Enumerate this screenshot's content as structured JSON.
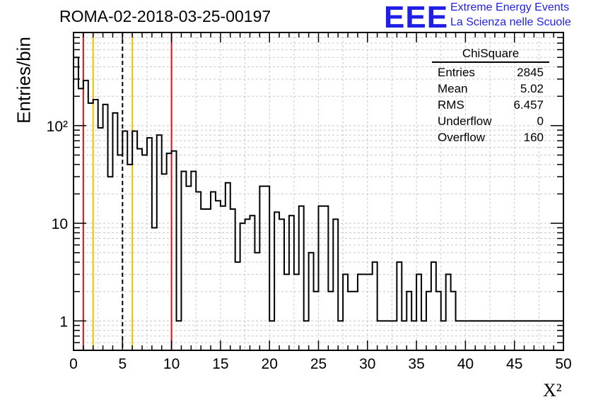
{
  "title": "ROMA-02-2018-03-25-00197",
  "logo": {
    "mark": "EEE",
    "line1": "Extreme Energy Events",
    "line2": "La Scienza nelle Scuole",
    "color": "#1f1fe6"
  },
  "stats": {
    "title": "ChiSquare",
    "rows": [
      {
        "label": "Entries",
        "value": "2845"
      },
      {
        "label": "Mean",
        "value": "5.02"
      },
      {
        "label": "RMS",
        "value": "6.457"
      },
      {
        "label": "Underflow",
        "value": "0"
      },
      {
        "label": "Overflow",
        "value": "160"
      }
    ]
  },
  "chart_data": {
    "type": "histogram",
    "scale": "log-y",
    "xlabel": "X²",
    "ylabel": "Entries/bin",
    "xlim": [
      0,
      50
    ],
    "ylim": [
      0.5,
      900
    ],
    "bin_width": 0.5,
    "x_ticks": [
      "0",
      "5",
      "10",
      "15",
      "20",
      "25",
      "30",
      "35",
      "40",
      "45",
      "50"
    ],
    "y_ticks": [
      {
        "value": 1,
        "label": "1"
      },
      {
        "value": 10,
        "label": "10"
      },
      {
        "value": 100,
        "label": "10²"
      }
    ],
    "grid": true,
    "values": [
      500,
      240,
      290,
      170,
      185,
      95,
      165,
      30,
      135,
      50,
      88,
      40,
      88,
      58,
      50,
      75,
      9,
      80,
      32,
      52,
      55,
      1,
      34,
      24,
      34,
      21,
      14,
      14,
      21,
      17,
      15,
      26,
      14,
      4,
      10,
      11,
      12,
      5,
      24,
      24,
      1,
      13,
      11,
      3,
      12,
      3,
      15,
      1,
      5,
      2,
      15,
      15,
      2,
      11,
      1,
      3,
      2,
      2,
      3,
      3,
      3,
      4,
      1,
      1,
      1,
      1,
      4,
      1,
      2,
      1,
      3,
      1,
      2,
      4,
      2,
      1,
      3,
      2,
      1,
      1,
      1,
      1,
      1,
      1,
      1,
      1,
      1,
      1,
      1,
      1,
      1,
      1,
      1,
      1,
      1,
      1,
      1,
      1,
      1,
      1
    ],
    "vertical_lines": [
      {
        "x": 1,
        "color": "#e01010",
        "style": "solid"
      },
      {
        "x": 2,
        "color": "#f0c000",
        "style": "solid"
      },
      {
        "x": 5,
        "color": "#000000",
        "style": "dashed"
      },
      {
        "x": 6,
        "color": "#f0c000",
        "style": "solid"
      },
      {
        "x": 10,
        "color": "#e01010",
        "style": "solid"
      }
    ]
  }
}
